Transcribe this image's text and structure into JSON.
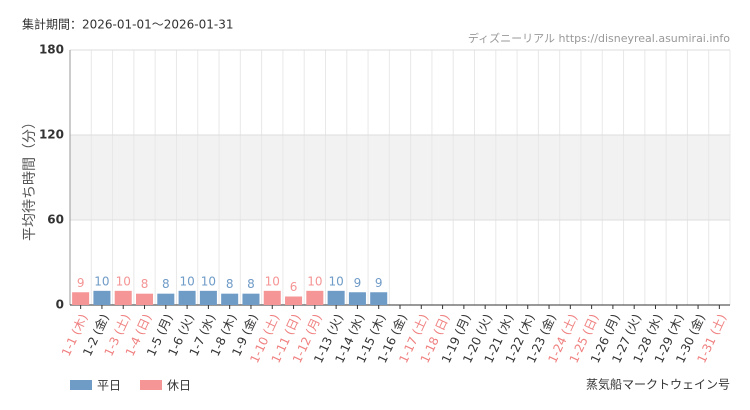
{
  "chart_data": {
    "type": "bar",
    "period": "集計期間：2026-01-01～2026-01-31",
    "source": "ディズニーリアル https://disneyreal.asumirai.info",
    "y_label": "平均待ち時間（分）",
    "attraction": "蒸気船マークトウェイン号",
    "categories": [
      "1-1 (木)",
      "1-2 (金)",
      "1-3 (土)",
      "1-4 (日)",
      "1-5 (月)",
      "1-6 (火)",
      "1-7 (水)",
      "1-8 (木)",
      "1-9 (金)",
      "1-10 (土)",
      "1-11 (日)",
      "1-12 (月)",
      "1-13 (火)",
      "1-14 (水)",
      "1-15 (木)",
      "1-16 (金)",
      "1-17 (土)",
      "1-18 (日)",
      "1-19 (月)",
      "1-20 (火)",
      "1-21 (水)",
      "1-22 (木)",
      "1-23 (金)",
      "1-24 (土)",
      "1-25 (日)",
      "1-26 (月)",
      "1-27 (火)",
      "1-28 (水)",
      "1-29 (木)",
      "1-30 (金)",
      "1-31 (土)"
    ],
    "category_label_colors": [
      "#f08080",
      "#333333",
      "#f08080",
      "#f08080",
      "#333333",
      "#333333",
      "#333333",
      "#333333",
      "#333333",
      "#f08080",
      "#f08080",
      "#f08080",
      "#333333",
      "#333333",
      "#333333",
      "#333333",
      "#f08080",
      "#f08080",
      "#333333",
      "#333333",
      "#333333",
      "#333333",
      "#333333",
      "#f08080",
      "#f08080",
      "#333333",
      "#333333",
      "#333333",
      "#333333",
      "#333333",
      "#f08080"
    ],
    "series": [
      {
        "name": "平日",
        "color": "#6f9bc7",
        "values": [
          null,
          10,
          null,
          null,
          8,
          10,
          10,
          8,
          8,
          null,
          null,
          null,
          10,
          9,
          9,
          null,
          null,
          null,
          null,
          null,
          null,
          null,
          null,
          null,
          null,
          null,
          null,
          null,
          null,
          null,
          null
        ]
      },
      {
        "name": "休日",
        "color": "#f59595",
        "values": [
          9,
          null,
          10,
          8,
          null,
          null,
          null,
          null,
          null,
          10,
          6,
          10,
          null,
          null,
          null,
          null,
          null,
          null,
          null,
          null,
          null,
          null,
          null,
          null,
          null,
          null,
          null,
          null,
          null,
          null,
          null
        ]
      }
    ],
    "ylim": [
      0,
      180
    ],
    "yticks": [
      0,
      60,
      120,
      180
    ],
    "shaded_band": [
      60,
      120
    ],
    "grid": true
  }
}
